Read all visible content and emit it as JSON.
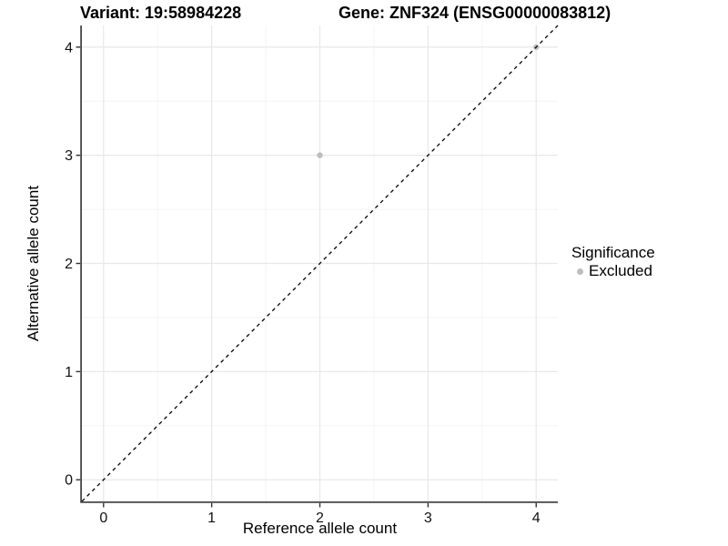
{
  "chart_data": {
    "type": "scatter",
    "titles": {
      "left": "Variant: 19:58984228",
      "right": "Gene: ZNF324 (ENSG00000083812)"
    },
    "xlabel": "Reference allele count",
    "ylabel": "Alternative allele count",
    "xlim": [
      -0.2,
      4.2
    ],
    "ylim": [
      -0.2,
      4.2
    ],
    "xticks": [
      0,
      1,
      2,
      3,
      4
    ],
    "yticks": [
      0,
      1,
      2,
      3,
      4
    ],
    "grid": {
      "major": true,
      "minor": true,
      "minor_position": "midpoints"
    },
    "identity_line": {
      "slope": 1,
      "intercept": 0,
      "style": "dashed"
    },
    "series": [
      {
        "name": "Excluded",
        "color": "#bdbdbd",
        "points": [
          {
            "x": 2,
            "y": 3
          },
          {
            "x": 4,
            "y": 4
          }
        ]
      }
    ],
    "legend": {
      "title": "Significance",
      "position": "right",
      "items": [
        {
          "label": "Excluded",
          "color": "#bdbdbd",
          "marker": "circle"
        }
      ]
    }
  },
  "colors": {
    "background": "#ffffff",
    "grid_major": "#e8e8e8",
    "grid_minor": "#f4f4f4",
    "axis_line": "#474747",
    "tick_mark": "#333333",
    "tick_text": "#111111",
    "text": "#000000",
    "identity_line": "#000000"
  }
}
